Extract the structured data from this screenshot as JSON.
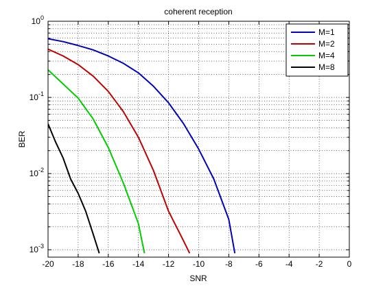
{
  "chart_data": {
    "type": "line",
    "title": "coherent reception",
    "xlabel": "SNR",
    "ylabel": "BER",
    "xlim": [
      -20,
      0
    ],
    "ylim": [
      0.0008,
      1
    ],
    "yscale": "log",
    "grid": true,
    "legend_position": "top-right",
    "x_ticks": [
      "-20",
      "-18",
      "-16",
      "-14",
      "-12",
      "-10",
      "-8",
      "-6",
      "-4",
      "-2",
      "0"
    ],
    "y_ticks": [
      {
        "base": "10",
        "exp": "0"
      },
      {
        "base": "10",
        "exp": "-1"
      },
      {
        "base": "10",
        "exp": "-2"
      },
      {
        "base": "10",
        "exp": "-3"
      }
    ],
    "series": [
      {
        "name": "M=1",
        "color": "#0000bf",
        "x": [
          -20,
          -19,
          -18,
          -17,
          -16,
          -15,
          -14,
          -13,
          -12,
          -11,
          -10,
          -9,
          -8,
          -7.6
        ],
        "y": [
          0.59,
          0.54,
          0.48,
          0.42,
          0.35,
          0.28,
          0.21,
          0.14,
          0.085,
          0.045,
          0.021,
          0.0085,
          0.0025,
          0.0009
        ]
      },
      {
        "name": "M=2",
        "color": "#bf0000",
        "x": [
          -20,
          -19,
          -18,
          -17,
          -16,
          -15,
          -14,
          -13,
          -12,
          -11,
          -10.6
        ],
        "y": [
          0.43,
          0.35,
          0.27,
          0.19,
          0.12,
          0.065,
          0.03,
          0.011,
          0.0032,
          0.0013,
          0.0009
        ]
      },
      {
        "name": "M=4",
        "color": "#00cc00",
        "x": [
          -20,
          -19,
          -18,
          -17,
          -16,
          -15,
          -14,
          -13.6
        ],
        "y": [
          0.23,
          0.15,
          0.098,
          0.052,
          0.022,
          0.0075,
          0.0022,
          0.0009
        ]
      },
      {
        "name": "M=8",
        "color": "#000000",
        "x": [
          -20,
          -19.5,
          -19,
          -18.5,
          -18,
          -17.5,
          -17,
          -16.6
        ],
        "y": [
          0.045,
          0.026,
          0.016,
          0.0085,
          0.0055,
          0.0032,
          0.0016,
          0.0009
        ]
      }
    ]
  }
}
